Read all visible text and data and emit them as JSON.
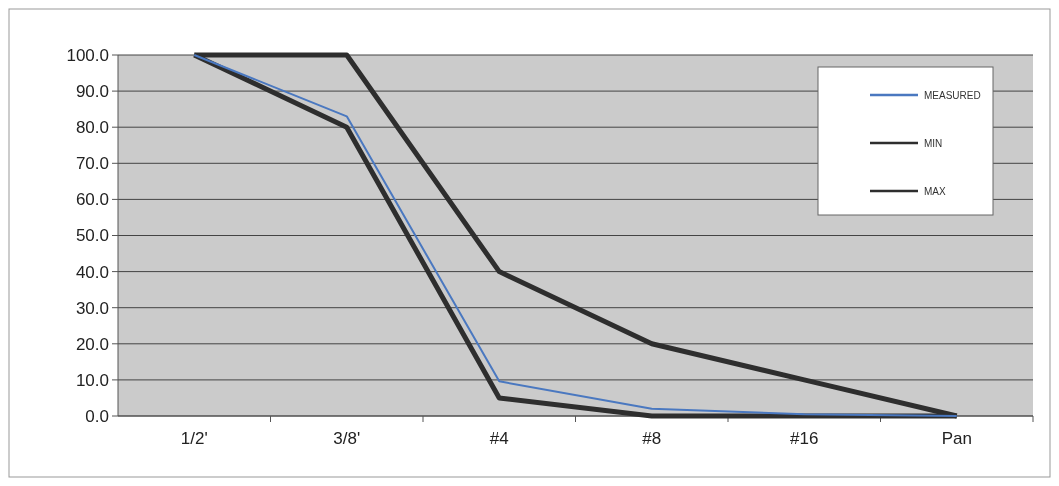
{
  "chart_data": {
    "type": "line",
    "categories": [
      "1/2'",
      "3/8'",
      "#4",
      "#8",
      "#16",
      "Pan"
    ],
    "series": [
      {
        "name": "MEASURED",
        "color": "#4a78c0",
        "values": [
          100,
          83,
          9.6,
          2,
          0.5,
          0
        ]
      },
      {
        "name": "MIN",
        "color": "#2e2e2e",
        "values": [
          100,
          80,
          5,
          0,
          0,
          0
        ]
      },
      {
        "name": "MAX",
        "color": "#2e2e2e",
        "values": [
          100,
          100,
          40,
          20,
          10,
          0
        ]
      }
    ],
    "ylim": [
      0,
      100
    ],
    "yticks": [
      {
        "value": 0,
        "label": "0.0"
      },
      {
        "value": 10,
        "label": "10.0"
      },
      {
        "value": 20,
        "label": "20.0"
      },
      {
        "value": 30,
        "label": "30.0"
      },
      {
        "value": 40,
        "label": "40.0"
      },
      {
        "value": 50,
        "label": "50.0"
      },
      {
        "value": 60,
        "label": "60.0"
      },
      {
        "value": 70,
        "label": "70.0"
      },
      {
        "value": 80,
        "label": "80.0"
      },
      {
        "value": 90,
        "label": "90.0"
      },
      {
        "value": 100,
        "label": "100.0"
      }
    ],
    "grid": "y",
    "legend": "top right",
    "marker": "none",
    "line_style": "solid"
  }
}
